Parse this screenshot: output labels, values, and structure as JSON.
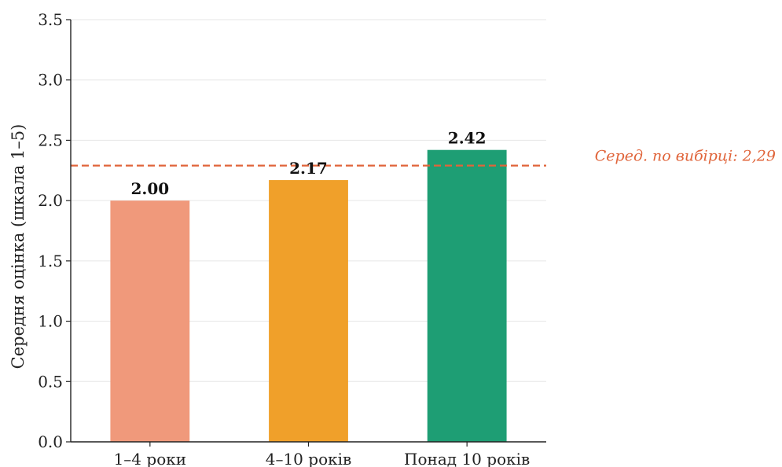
{
  "chart_data": {
    "type": "bar",
    "categories": [
      "1–4 роки",
      "4–10 років",
      "Понад 10 років"
    ],
    "values": [
      2.0,
      2.17,
      2.42
    ],
    "data_labels": [
      "2.00",
      "2.17",
      "2.42"
    ],
    "bar_colors": [
      "#f0997b",
      "#f0a02a",
      "#1e9e74"
    ],
    "ylabel": "Середня оцінка (шкала 1–5)",
    "ylim": [
      0,
      3.5
    ],
    "yticks": [
      0.0,
      0.5,
      1.0,
      1.5,
      2.0,
      2.5,
      3.0,
      3.5
    ],
    "ytick_labels": [
      "0.0",
      "0.5",
      "1.0",
      "1.5",
      "2.0",
      "2.5",
      "3.0",
      "3.5"
    ],
    "grid": "horizontal",
    "reference_line": {
      "value": 2.29,
      "label": "Серед. по вибірці: 2,29",
      "color": "#e0643a",
      "style": "dashed"
    }
  }
}
